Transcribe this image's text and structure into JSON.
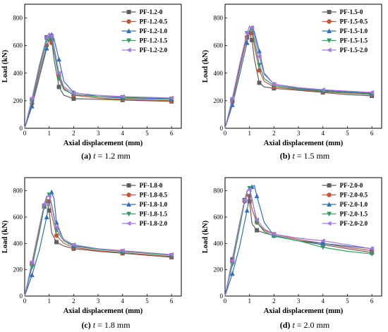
{
  "colors": {
    "series": [
      "#5f5f5f",
      "#c4553a",
      "#2d6fb8",
      "#2e9e5a",
      "#a777e0"
    ],
    "markers": [
      "square",
      "circle",
      "triangle-up",
      "triangle-down",
      "triangle-left"
    ]
  },
  "chart_data": [
    {
      "type": "line",
      "xlabel": "Axial displacement (mm)",
      "ylabel": "Load (kN)",
      "xlim": [
        0,
        6.4
      ],
      "ylim": [
        0,
        900
      ],
      "xticks": [
        "0",
        "1",
        "2",
        "3",
        "4",
        "5",
        "6"
      ],
      "yticks": [
        "0",
        "200",
        "400",
        "600",
        "800"
      ],
      "legend_position": "top-right",
      "caption": {
        "prefix": "(a) ",
        "var": "t",
        "suffix": " = 1.2 mm"
      },
      "series": [
        {
          "name": "PF-1.2-0",
          "x": [
            0,
            0.3,
            0.6,
            0.9,
            1.0,
            1.1,
            1.2,
            1.4,
            1.6,
            2.0,
            3,
            4,
            5,
            6
          ],
          "y": [
            0,
            210,
            440,
            660,
            690,
            640,
            500,
            300,
            240,
            215,
            210,
            205,
            200,
            195
          ]
        },
        {
          "name": "PF-1.2-0.5",
          "x": [
            0,
            0.3,
            0.6,
            0.9,
            1.0,
            1.1,
            1.2,
            1.4,
            1.6,
            2.0,
            3,
            4,
            5,
            6
          ],
          "y": [
            0,
            180,
            400,
            600,
            640,
            620,
            560,
            380,
            290,
            240,
            220,
            210,
            205,
            200
          ]
        },
        {
          "name": "PF-1.2-1.0",
          "x": [
            0,
            0.3,
            0.6,
            0.9,
            1.0,
            1.1,
            1.2,
            1.4,
            1.6,
            2.0,
            3,
            4,
            5,
            6
          ],
          "y": [
            0,
            160,
            370,
            580,
            660,
            680,
            650,
            500,
            340,
            260,
            230,
            220,
            215,
            210
          ]
        },
        {
          "name": "PF-1.2-1.5",
          "x": [
            0,
            0.3,
            0.6,
            0.9,
            1.0,
            1.1,
            1.2,
            1.4,
            1.6,
            2.0,
            3,
            4,
            5,
            6
          ],
          "y": [
            0,
            200,
            430,
            640,
            670,
            650,
            560,
            360,
            280,
            245,
            230,
            225,
            220,
            215
          ]
        },
        {
          "name": "PF-1.2-2.0",
          "x": [
            0,
            0.3,
            0.6,
            0.9,
            1.0,
            1.1,
            1.2,
            1.4,
            1.6,
            2.0,
            3,
            4,
            5,
            6
          ],
          "y": [
            0,
            220,
            460,
            660,
            690,
            670,
            600,
            400,
            300,
            255,
            240,
            230,
            225,
            220
          ]
        }
      ]
    },
    {
      "type": "line",
      "xlabel": "Axial displacement (mm)",
      "ylabel": "Load (kN)",
      "xlim": [
        0,
        6.4
      ],
      "ylim": [
        0,
        900
      ],
      "xticks": [
        "0",
        "1",
        "2",
        "3",
        "4",
        "5",
        "6"
      ],
      "yticks": [
        "0",
        "200",
        "400",
        "600",
        "800"
      ],
      "legend_position": "top-right",
      "caption": {
        "prefix": "(b) ",
        "var": "t",
        "suffix": " = 1.5 mm"
      },
      "series": [
        {
          "name": "PF-1.5-0",
          "x": [
            0,
            0.3,
            0.6,
            0.9,
            1.0,
            1.1,
            1.2,
            1.4,
            1.6,
            2.0,
            3,
            4,
            5,
            6
          ],
          "y": [
            0,
            200,
            450,
            660,
            690,
            640,
            500,
            330,
            300,
            290,
            275,
            260,
            245,
            235
          ]
        },
        {
          "name": "PF-1.5-0.5",
          "x": [
            0,
            0.3,
            0.6,
            0.9,
            1.0,
            1.1,
            1.2,
            1.4,
            1.6,
            2.0,
            3,
            4,
            5,
            6
          ],
          "y": [
            0,
            190,
            430,
            660,
            710,
            690,
            600,
            420,
            340,
            300,
            280,
            265,
            255,
            245
          ]
        },
        {
          "name": "PF-1.5-1.0",
          "x": [
            0,
            0.3,
            0.6,
            0.9,
            1.0,
            1.1,
            1.2,
            1.4,
            1.6,
            2.0,
            3,
            4,
            5,
            6
          ],
          "y": [
            0,
            170,
            390,
            620,
            700,
            730,
            700,
            560,
            400,
            320,
            290,
            275,
            265,
            255
          ]
        },
        {
          "name": "PF-1.5-1.5",
          "x": [
            0,
            0.3,
            0.6,
            0.9,
            1.0,
            1.1,
            1.2,
            1.4,
            1.6,
            2.0,
            3,
            4,
            5,
            6
          ],
          "y": [
            0,
            210,
            460,
            690,
            740,
            720,
            640,
            460,
            360,
            310,
            285,
            270,
            260,
            250
          ]
        },
        {
          "name": "PF-1.5-2.0",
          "x": [
            0,
            0.3,
            0.6,
            0.9,
            1.0,
            1.1,
            1.2,
            1.4,
            1.6,
            2.0,
            3,
            4,
            5,
            6
          ],
          "y": [
            0,
            220,
            470,
            690,
            740,
            730,
            680,
            520,
            390,
            320,
            295,
            280,
            270,
            260
          ]
        }
      ]
    },
    {
      "type": "line",
      "xlabel": "Axial displacement (mm)",
      "ylabel": "Load (kN)",
      "xlim": [
        0,
        6.4
      ],
      "ylim": [
        0,
        900
      ],
      "xticks": [
        "0",
        "1",
        "2",
        "3",
        "4",
        "5",
        "6"
      ],
      "yticks": [
        "0",
        "200",
        "400",
        "600",
        "800"
      ],
      "legend_position": "top-right",
      "caption": {
        "prefix": "(c) ",
        "var": "t",
        "suffix": " = 1.8 mm"
      },
      "series": [
        {
          "name": "PF-1.8-0",
          "x": [
            0,
            0.3,
            0.6,
            0.8,
            0.9,
            1.0,
            1.1,
            1.3,
            1.6,
            2.0,
            3,
            4,
            5,
            6
          ],
          "y": [
            0,
            250,
            520,
            680,
            720,
            650,
            480,
            410,
            380,
            360,
            340,
            325,
            310,
            295
          ]
        },
        {
          "name": "PF-1.8-0.5",
          "x": [
            0,
            0.3,
            0.6,
            0.8,
            0.9,
            1.0,
            1.1,
            1.3,
            1.6,
            2.0,
            3,
            4,
            5,
            6
          ],
          "y": [
            0,
            240,
            510,
            690,
            740,
            720,
            620,
            460,
            400,
            370,
            345,
            330,
            315,
            300
          ]
        },
        {
          "name": "PF-1.8-1.0",
          "x": [
            0,
            0.3,
            0.6,
            0.9,
            1.0,
            1.1,
            1.2,
            1.3,
            1.6,
            2.0,
            3,
            4,
            5,
            6
          ],
          "y": [
            0,
            160,
            350,
            600,
            720,
            790,
            740,
            560,
            420,
            380,
            355,
            340,
            325,
            310
          ]
        },
        {
          "name": "PF-1.8-1.5",
          "x": [
            0,
            0.3,
            0.6,
            0.8,
            0.9,
            1.0,
            1.1,
            1.3,
            1.6,
            2.0,
            3,
            4,
            5,
            6
          ],
          "y": [
            0,
            220,
            480,
            680,
            750,
            770,
            690,
            500,
            420,
            385,
            355,
            340,
            325,
            310
          ]
        },
        {
          "name": "PF-1.8-2.0",
          "x": [
            0,
            0.3,
            0.6,
            0.8,
            0.9,
            1.0,
            1.1,
            1.3,
            1.6,
            2.0,
            3,
            4,
            5,
            6
          ],
          "y": [
            0,
            260,
            530,
            700,
            760,
            760,
            700,
            520,
            430,
            390,
            360,
            345,
            330,
            315
          ]
        }
      ]
    },
    {
      "type": "line",
      "xlabel": "Axial displacement (mm)",
      "ylabel": "Load (kN)",
      "xlim": [
        0,
        6.4
      ],
      "ylim": [
        0,
        900
      ],
      "xticks": [
        "0",
        "1",
        "2",
        "3",
        "4",
        "5",
        "6"
      ],
      "yticks": [
        "0",
        "200",
        "400",
        "600",
        "800"
      ],
      "legend_position": "top-right",
      "caption": {
        "prefix": "(d) ",
        "var": "t",
        "suffix": " = 2.0 mm"
      },
      "series": [
        {
          "name": "PF-2.0-0",
          "x": [
            0,
            0.3,
            0.6,
            0.8,
            0.9,
            1.0,
            1.1,
            1.3,
            1.6,
            2.0,
            3,
            4,
            5,
            6
          ],
          "y": [
            0,
            280,
            560,
            730,
            780,
            720,
            550,
            500,
            480,
            460,
            420,
            390,
            360,
            330
          ]
        },
        {
          "name": "PF-2.0-0.5",
          "x": [
            0,
            0.3,
            0.6,
            0.8,
            0.9,
            1.0,
            1.1,
            1.3,
            1.6,
            2.0,
            3,
            4,
            5,
            6
          ],
          "y": [
            0,
            260,
            540,
            720,
            770,
            760,
            660,
            560,
            500,
            470,
            430,
            400,
            370,
            345
          ]
        },
        {
          "name": "PF-2.0-1.0",
          "x": [
            0,
            0.3,
            0.6,
            0.9,
            1.0,
            1.1,
            1.2,
            1.3,
            1.6,
            2.0,
            3,
            4,
            5,
            6
          ],
          "y": [
            0,
            170,
            380,
            650,
            760,
            830,
            840,
            760,
            560,
            460,
            420,
            400,
            380,
            360
          ]
        },
        {
          "name": "PF-2.0-1.5",
          "x": [
            0,
            0.3,
            0.6,
            0.8,
            0.9,
            1.0,
            1.1,
            1.3,
            1.6,
            2.0,
            3,
            4,
            5,
            6
          ],
          "y": [
            0,
            240,
            520,
            720,
            790,
            820,
            740,
            560,
            490,
            455,
            420,
            370,
            340,
            320
          ]
        },
        {
          "name": "PF-2.0-2.0",
          "x": [
            0,
            0.3,
            0.6,
            0.8,
            0.9,
            1.0,
            1.1,
            1.3,
            1.6,
            2.0,
            3,
            4,
            5,
            6
          ],
          "y": [
            0,
            270,
            550,
            730,
            800,
            810,
            730,
            580,
            510,
            470,
            440,
            420,
            390,
            360
          ]
        }
      ]
    }
  ]
}
